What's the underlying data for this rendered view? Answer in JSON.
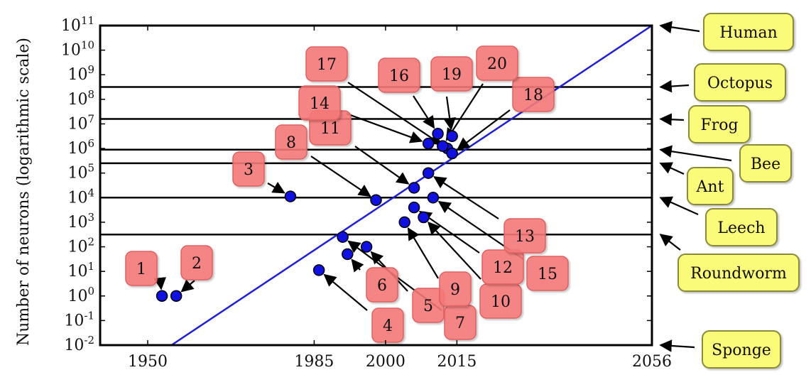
{
  "chart_data": {
    "type": "scatter",
    "ylabel": "Number of neurons (logarithmic scale)",
    "y_scale": "log",
    "xlim": [
      1940,
      2056
    ],
    "ylim_exponents": [
      -2,
      11
    ],
    "x_ticks": [
      {
        "value": 1950,
        "label": "1950"
      },
      {
        "value": 1985,
        "label": "1985"
      },
      {
        "value": 2000,
        "label": "2000"
      },
      {
        "value": 2015,
        "label": "2015"
      },
      {
        "value": 2056,
        "label": "2056"
      }
    ],
    "y_ticks": [
      {
        "exp": -2,
        "label": "-2"
      },
      {
        "exp": -1,
        "label": "-1"
      },
      {
        "exp": 0,
        "label": "0"
      },
      {
        "exp": 1,
        "label": "1"
      },
      {
        "exp": 2,
        "label": "2"
      },
      {
        "exp": 3,
        "label": "3"
      },
      {
        "exp": 4,
        "label": "4"
      },
      {
        "exp": 5,
        "label": "5"
      },
      {
        "exp": 6,
        "label": "6"
      },
      {
        "exp": 7,
        "label": "7"
      },
      {
        "exp": 8,
        "label": "8"
      },
      {
        "exp": 9,
        "label": "9"
      },
      {
        "exp": 10,
        "label": "10"
      },
      {
        "exp": 11,
        "label": "11"
      }
    ],
    "tick_base": "10",
    "trend_line": {
      "color": "#1f1fd6",
      "x": [
        1955,
        2056
      ],
      "y_exp": [
        -2,
        11
      ]
    },
    "reference_levels": [
      {
        "name": "Human",
        "y_exp": 11
      },
      {
        "name": "Octopus",
        "y_exp": 8.5
      },
      {
        "name": "Frog",
        "y_exp": 7.2
      },
      {
        "name": "Bee",
        "y_exp": 5.95
      },
      {
        "name": "Ant",
        "y_exp": 5.4
      },
      {
        "name": "Leech",
        "y_exp": 4
      },
      {
        "name": "Roundworm",
        "y_exp": 2.5
      },
      {
        "name": "Sponge",
        "y_exp": -2
      }
    ],
    "points": [
      {
        "id": "1",
        "x": 1953,
        "y_exp": 0
      },
      {
        "id": "2",
        "x": 1956,
        "y_exp": 0
      },
      {
        "id": "3",
        "x": 1980,
        "y_exp": 4.05
      },
      {
        "id": "4",
        "x": 1986,
        "y_exp": 1.05
      },
      {
        "id": "5",
        "x": 1996,
        "y_exp": 2
      },
      {
        "id": "6",
        "x": 1992,
        "y_exp": 1.7
      },
      {
        "id": "7",
        "x": 1991,
        "y_exp": 2.4
      },
      {
        "id": "8",
        "x": 1998,
        "y_exp": 3.9
      },
      {
        "id": "9",
        "x": 2004,
        "y_exp": 3
      },
      {
        "id": "10",
        "x": 2008,
        "y_exp": 3.2
      },
      {
        "id": "11",
        "x": 2006,
        "y_exp": 4.4
      },
      {
        "id": "12",
        "x": 2006,
        "y_exp": 3.6
      },
      {
        "id": "13",
        "x": 2009,
        "y_exp": 5
      },
      {
        "id": "14",
        "x": 2009,
        "y_exp": 6.2
      },
      {
        "id": "15",
        "x": 2010,
        "y_exp": 4
      },
      {
        "id": "16",
        "x": 2011,
        "y_exp": 6.6
      },
      {
        "id": "17",
        "x": 2013,
        "y_exp": 6
      },
      {
        "id": "18",
        "x": 2014,
        "y_exp": 5.8
      },
      {
        "id": "19",
        "x": 2014,
        "y_exp": 6.5
      },
      {
        "id": "20",
        "x": 2012,
        "y_exp": 6.1
      }
    ],
    "colors": {
      "point_fill": "#1010e0",
      "label_fill": "#f77a7a",
      "label_stroke": "#e06060",
      "organism_fill": "#fbfb7a",
      "organism_stroke": "#8a8a3a"
    }
  }
}
